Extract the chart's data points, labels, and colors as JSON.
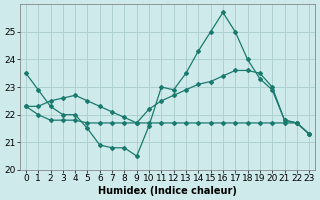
{
  "xlabel": "Humidex (Indice chaleur)",
  "x": [
    0,
    1,
    2,
    3,
    4,
    5,
    6,
    7,
    8,
    9,
    10,
    11,
    12,
    13,
    14,
    15,
    16,
    17,
    18,
    19,
    20,
    21,
    22,
    23
  ],
  "line1": [
    23.5,
    22.9,
    22.3,
    22.0,
    22.0,
    21.5,
    20.9,
    20.8,
    20.8,
    20.5,
    21.6,
    23.0,
    22.9,
    23.5,
    24.3,
    25.0,
    25.7,
    25.0,
    24.0,
    23.3,
    22.9,
    21.8,
    21.7,
    21.3
  ],
  "line2": [
    22.3,
    22.3,
    22.5,
    22.6,
    22.7,
    22.5,
    22.3,
    22.1,
    21.9,
    21.7,
    22.2,
    22.5,
    22.7,
    22.9,
    23.1,
    23.2,
    23.4,
    23.6,
    23.6,
    23.5,
    23.0,
    21.8,
    21.7,
    21.3
  ],
  "line3": [
    22.3,
    22.0,
    21.8,
    21.8,
    21.8,
    21.7,
    21.7,
    21.7,
    21.7,
    21.7,
    21.7,
    21.7,
    21.7,
    21.7,
    21.7,
    21.7,
    21.7,
    21.7,
    21.7,
    21.7,
    21.7,
    21.7,
    21.7,
    21.3
  ],
  "line_color": "#1a7a6e",
  "bg_color": "#ceeaea",
  "grid_color": "#aed0d0",
  "ylim": [
    20,
    26
  ],
  "xlim": [
    -0.5,
    23.5
  ],
  "yticks": [
    20,
    21,
    22,
    23,
    24,
    25
  ],
  "marker": "D",
  "markersize": 2.0,
  "linewidth": 0.9,
  "fontsize_xlabel": 7,
  "fontsize_ticks": 6.5
}
